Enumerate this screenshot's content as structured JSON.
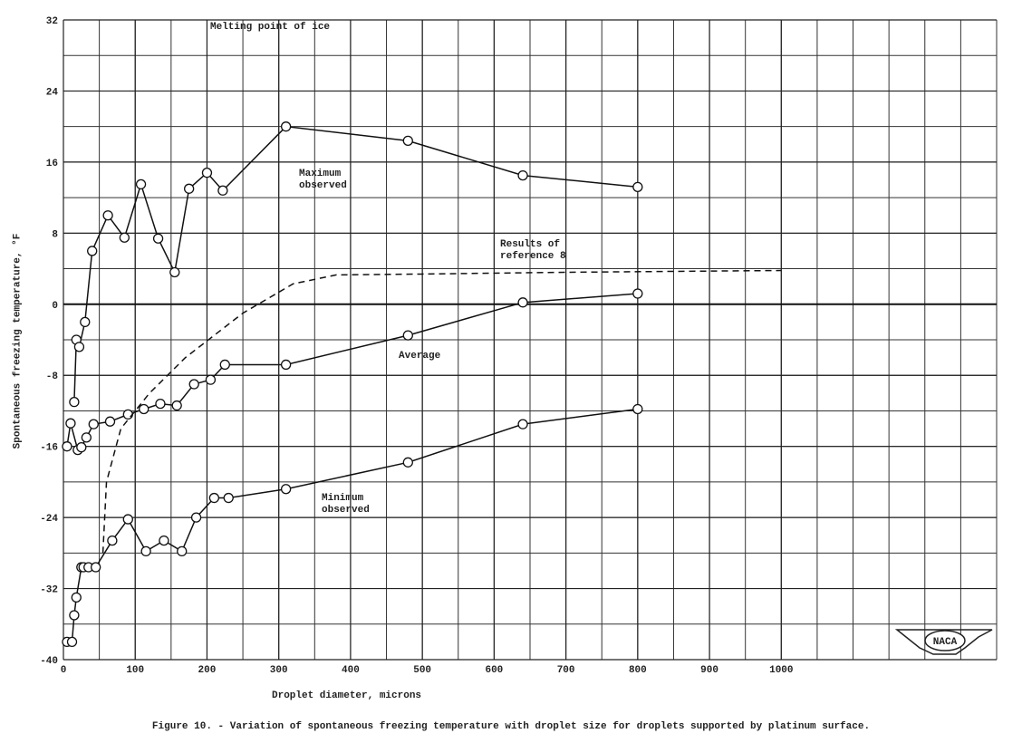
{
  "chart_data": {
    "type": "line",
    "xlabel": "Droplet diameter, microns",
    "ylabel": "Spontaneous freezing temperature, °F",
    "caption": "Figure 10. - Variation of spontaneous freezing temperature with droplet size for droplets supported by platinum surface.",
    "annotation": "Melting point of ice",
    "reference_line": 0,
    "xlim": [
      0,
      1300
    ],
    "ylim": [
      -40,
      32
    ],
    "xticks": [
      0,
      100,
      200,
      300,
      400,
      500,
      600,
      700,
      800,
      900,
      1000
    ],
    "yticks": [
      -40,
      -32,
      -24,
      -16,
      -8,
      0,
      8,
      16,
      24,
      32
    ],
    "grid": true,
    "logo": "NACA",
    "series": [
      {
        "name": "Maximum observed",
        "color": "#111",
        "marker": "circle",
        "x": [
          15,
          18,
          22,
          30,
          40,
          62,
          85,
          108,
          132,
          155,
          175,
          200,
          222,
          310,
          480,
          640,
          800
        ],
        "values": [
          -11,
          -4,
          -4.8,
          -2,
          6,
          10,
          7.5,
          13.5,
          7.4,
          3.6,
          13,
          14.8,
          12.8,
          20,
          18.4,
          14.5,
          13.2
        ]
      },
      {
        "name": "Average",
        "color": "#111",
        "marker": "circle",
        "x": [
          5,
          10,
          20,
          25,
          32,
          42,
          65,
          90,
          112,
          135,
          158,
          182,
          205,
          225,
          310,
          480,
          640,
          800
        ],
        "values": [
          -16,
          -13.4,
          -16.4,
          -16.1,
          -15,
          -13.5,
          -13.2,
          -12.4,
          -11.8,
          -11.2,
          -11.4,
          -9,
          -8.5,
          -6.8,
          -6.8,
          -3.5,
          0.2,
          1.2
        ]
      },
      {
        "name": "Minimum observed",
        "color": "#111",
        "marker": "circle",
        "x": [
          5,
          12,
          15,
          18,
          25,
          28,
          35,
          45,
          68,
          90,
          115,
          140,
          165,
          185,
          210,
          230,
          310,
          480,
          640,
          800
        ],
        "values": [
          -38,
          -38,
          -35,
          -33,
          -29.6,
          -29.6,
          -29.6,
          -29.6,
          -26.6,
          -24.2,
          -27.8,
          -26.6,
          -27.8,
          -24,
          -21.8,
          -21.8,
          -20.8,
          -17.8,
          -13.5,
          -11.8
        ]
      },
      {
        "name": "Results of reference 8",
        "color": "#111",
        "dashed": true,
        "x": [
          55,
          60,
          80,
          120,
          170,
          250,
          320,
          380,
          500,
          700,
          1000
        ],
        "values": [
          -28,
          -20,
          -14,
          -10,
          -6,
          -1,
          2.3,
          3.3,
          3.4,
          3.6,
          3.8
        ]
      }
    ]
  }
}
